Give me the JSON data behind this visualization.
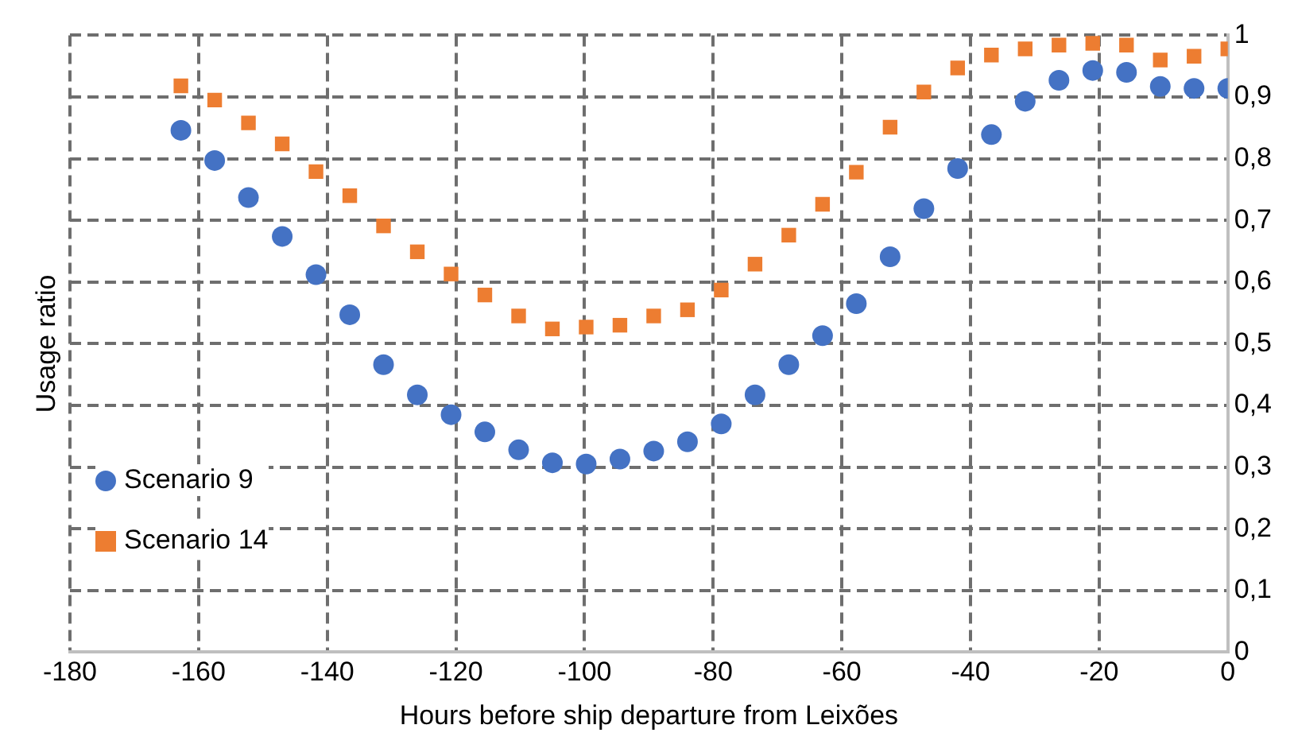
{
  "chart_data": {
    "type": "scatter",
    "xlabel": "Hours before ship departure from Leixões",
    "ylabel": "Usage ratio",
    "x": [
      -162.75,
      -157.5,
      -152.25,
      -147,
      -141.75,
      -136.5,
      -131.25,
      -126,
      -120.75,
      -115.5,
      -110.25,
      -105,
      -99.75,
      -94.5,
      -89.25,
      -84,
      -78.75,
      -73.5,
      -68.25,
      -63,
      -57.75,
      -52.5,
      -47.25,
      -42,
      -36.75,
      -31.5,
      -26.25,
      -21,
      -15.75,
      -10.5,
      -5.25,
      0
    ],
    "series": [
      {
        "name": "Scenario 9",
        "color": "#4472c4",
        "marker": "circle",
        "values": [
          0.846,
          0.797,
          0.737,
          0.674,
          0.612,
          0.547,
          0.466,
          0.417,
          0.385,
          0.357,
          0.328,
          0.307,
          0.305,
          0.313,
          0.326,
          0.341,
          0.37,
          0.417,
          0.466,
          0.513,
          0.565,
          0.641,
          0.719,
          0.784,
          0.839,
          0.893,
          0.927,
          0.943,
          0.94,
          0.917,
          0.914,
          0.914
        ]
      },
      {
        "name": "Scenario 14",
        "color": "#ed7d31",
        "marker": "square",
        "values": [
          0.918,
          0.895,
          0.858,
          0.824,
          0.779,
          0.74,
          0.691,
          0.649,
          0.613,
          0.579,
          0.545,
          0.524,
          0.527,
          0.53,
          0.545,
          0.555,
          0.587,
          0.629,
          0.676,
          0.726,
          0.778,
          0.851,
          0.908,
          0.947,
          0.968,
          0.978,
          0.984,
          0.987,
          0.984,
          0.96,
          0.966,
          0.978
        ]
      }
    ],
    "xlim": [
      -180,
      0
    ],
    "xticks": [
      -180,
      -160,
      -140,
      -120,
      -100,
      -80,
      -60,
      -40,
      -20,
      0
    ],
    "ylim": [
      0,
      1
    ],
    "yticks": [
      0,
      {
        "value": 0.1,
        "label": "0,1"
      },
      {
        "value": 0.2,
        "label": "0,2"
      },
      {
        "value": 0.3,
        "label": "0,3"
      },
      {
        "value": 0.4,
        "label": "0,4"
      },
      {
        "value": 0.5,
        "label": "0,5"
      },
      {
        "value": 0.6,
        "label": "0,6"
      },
      {
        "value": 0.7,
        "label": "0,7"
      },
      {
        "value": 0.8,
        "label": "0,8"
      },
      {
        "value": 0.9,
        "label": "0,9"
      },
      1
    ],
    "grid": true,
    "legend": "bottom left"
  }
}
